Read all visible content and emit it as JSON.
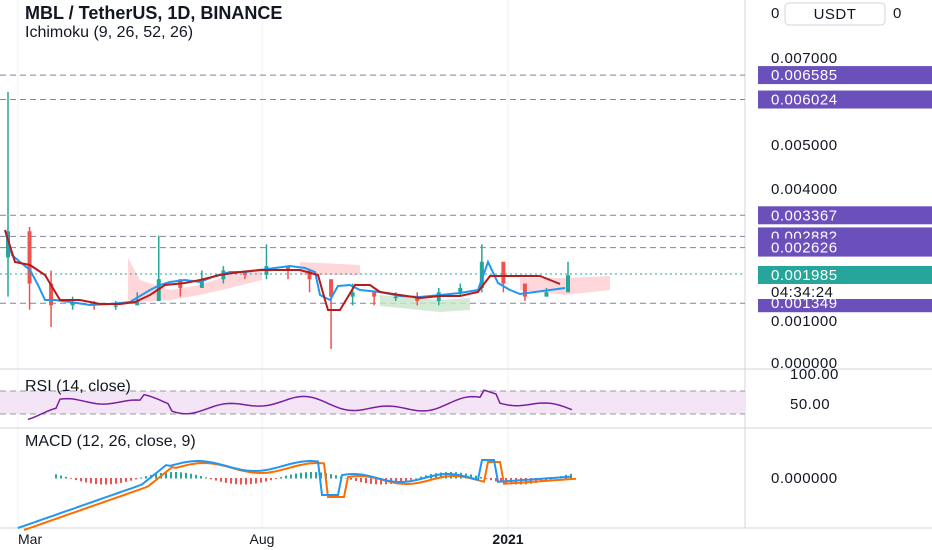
{
  "header": {
    "title": "MBL / TetherUS, 1D, BINANCE",
    "indicator": "Ichimoku (9, 26, 52, 26)",
    "currency_button": "USDT"
  },
  "colors": {
    "level_tag": "#6b4fbb",
    "last_price_tag": "#26a69a",
    "candle_up": "#26a69a",
    "candle_down": "#ef5350",
    "conversion_line": "#2196f3",
    "base_line": "#b71c1c",
    "cloud_bull": "#c8e6c9",
    "cloud_bear": "#ffcdd2",
    "rsi_line": "#7b1fa2",
    "rsi_band": "#f3e5f5",
    "macd_line": "#2196f3",
    "signal_line": "#ff6d00",
    "hist_pos": "#26a69a",
    "hist_neg": "#ef5350"
  },
  "price_axis": {
    "ticks": [
      "0.007000",
      "0.005000",
      "0.004000",
      "0.000000"
    ],
    "tick_values": [
      0.007,
      0.005,
      0.004,
      0.0
    ],
    "level_tags": [
      "0.006585",
      "0.006024",
      "0.003367",
      "0.002882",
      "0.002626",
      "0.001349"
    ],
    "level_values": [
      0.006585,
      0.006024,
      0.003367,
      0.002882,
      0.002626,
      0.001349
    ],
    "last_price": "0.001985",
    "last_price_value": 0.001985,
    "countdown": "04:34:24",
    "partial_top": "0.001000"
  },
  "rsi": {
    "title": "RSI (14, close)",
    "tick_top": "100.00",
    "tick_mid": "50.00"
  },
  "macd": {
    "title": "MACD (12, 26, close, 9)",
    "tick_zero": "0.000000"
  },
  "x_axis": {
    "labels": [
      "Mar",
      "Aug",
      "2021"
    ]
  },
  "chart_data": {
    "type": "candlestick",
    "title": "MBL / TetherUS, 1D, BINANCE",
    "x_labels": [
      "Mar",
      "Aug",
      "2021"
    ],
    "ylim": [
      0.0,
      0.0072
    ],
    "price_series": {
      "name": "MBL / TetherUS",
      "dates": [
        "2020-03-05",
        "2020-03-15",
        "2020-03-25",
        "2020-04-05",
        "2020-04-20",
        "2020-05-05",
        "2020-05-20",
        "2020-06-01",
        "2020-06-10",
        "2020-06-25",
        "2020-07-10",
        "2020-07-25",
        "2020-08-05",
        "2020-08-20",
        "2020-09-01",
        "2020-09-10",
        "2020-09-20",
        "2020-10-05",
        "2020-10-20",
        "2020-11-05",
        "2020-11-20",
        "2020-12-05",
        "2020-12-15",
        "2020-12-25",
        "2021-01-05",
        "2021-01-15",
        "2021-01-25"
      ],
      "close": [
        0.003,
        0.0018,
        0.0013,
        0.00135,
        0.0013,
        0.0013,
        0.0014,
        0.0019,
        0.0017,
        0.0019,
        0.0021,
        0.002,
        0.0022,
        0.0021,
        0.0019,
        0.0015,
        0.0016,
        0.0015,
        0.0015,
        0.0014,
        0.0016,
        0.0017,
        0.0023,
        0.0018,
        0.0015,
        0.0016,
        0.00199
      ],
      "high": [
        0.0062,
        0.0031,
        0.0021,
        0.0015,
        0.0014,
        0.0014,
        0.0016,
        0.0029,
        0.0019,
        0.0021,
        0.0022,
        0.0021,
        0.0027,
        0.0022,
        0.0021,
        0.0018,
        0.0018,
        0.0016,
        0.0016,
        0.0016,
        0.0017,
        0.0018,
        0.0027,
        0.0023,
        0.0018,
        0.0017,
        0.0023
      ],
      "low": [
        0.0015,
        0.0012,
        0.0008,
        0.0012,
        0.0012,
        0.0012,
        0.0013,
        0.0014,
        0.0015,
        0.0017,
        0.0018,
        0.0019,
        0.0019,
        0.0019,
        0.0016,
        0.0003,
        0.0013,
        0.0013,
        0.0014,
        0.0013,
        0.0013,
        0.0015,
        0.0016,
        0.0016,
        0.0014,
        0.0015,
        0.0016
      ]
    }
  }
}
